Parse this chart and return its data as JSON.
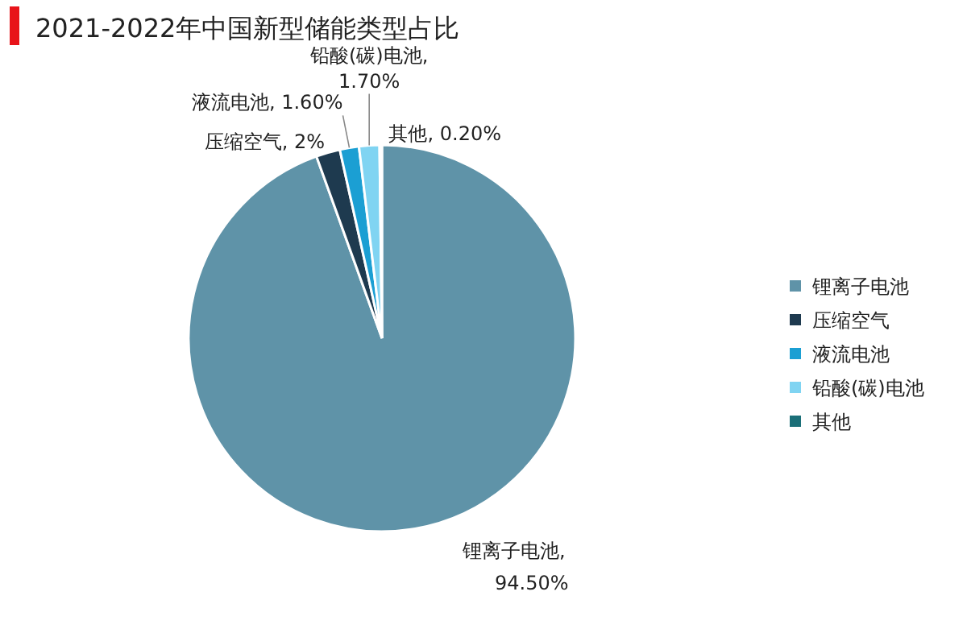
{
  "chart_data": {
    "type": "pie",
    "title": "2021-2022年中国新型储能类型占比",
    "categories": [
      "锂离子电池",
      "压缩空气",
      "液流电池",
      "铅酸(碳)电池",
      "其他"
    ],
    "values": [
      94.5,
      2,
      1.6,
      1.7,
      0.2
    ],
    "value_labels": [
      "锂离子电池, 94.50%",
      "压缩空气, 2%",
      "液流电池, 1.60%",
      "铅酸(碳)电池, 1.70%",
      "其他, 0.20%"
    ],
    "colors": [
      "#5f93a8",
      "#1e3a4f",
      "#1b9fd3",
      "#80d4f2",
      "#1b6f78"
    ],
    "legend": "right"
  }
}
